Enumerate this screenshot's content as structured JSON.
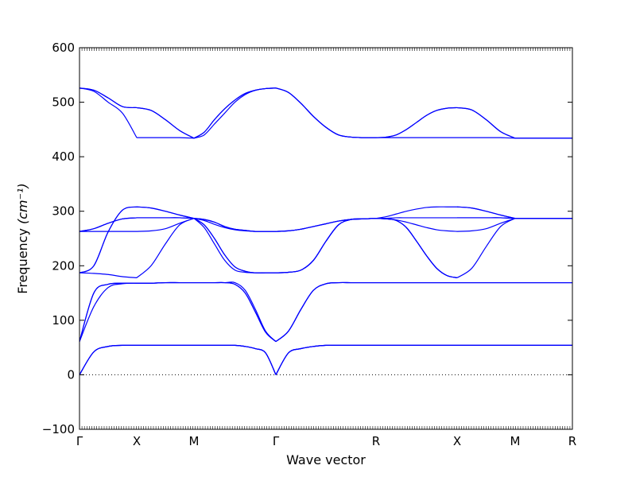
{
  "chart_data": {
    "type": "line",
    "title": "",
    "xlabel": "Wave vector",
    "ylabel": "Frequency",
    "ylabel_unit": "(cm⁻¹)",
    "ylim": [
      -100,
      600
    ],
    "yticks": [
      -100,
      0,
      100,
      200,
      300,
      400,
      500,
      600
    ],
    "k_points": [
      "Γ",
      "X",
      "M",
      "Γ",
      "R",
      "X",
      "M",
      "R"
    ],
    "grid": false,
    "legend": "none",
    "series_color": "#0000ff",
    "zero_line_color": "#000000",
    "segments": [
      {
        "from": "Γ",
        "to": "X",
        "x": [
          0,
          0.25,
          0.5,
          0.75,
          1
        ],
        "bands": [
          [
            0,
            42,
            52,
            54,
            54
          ],
          [
            0,
            42,
            52,
            54,
            54
          ],
          [
            0,
            42,
            52,
            54,
            54
          ],
          [
            61,
            125,
            160,
            167,
            168
          ],
          [
            61,
            150,
            166,
            168,
            168
          ],
          [
            61,
            150,
            166,
            168,
            168
          ],
          [
            187,
            186,
            184,
            180,
            178
          ],
          [
            187,
            200,
            262,
            302,
            308
          ],
          [
            187,
            200,
            262,
            302,
            308
          ],
          [
            263,
            263,
            263,
            263,
            263
          ],
          [
            263,
            268,
            278,
            286,
            288
          ],
          [
            263,
            268,
            278,
            286,
            288
          ],
          [
            526,
            520,
            500,
            480,
            435
          ],
          [
            526,
            522,
            508,
            492,
            490
          ],
          [
            526,
            522,
            508,
            492,
            490
          ]
        ]
      },
      {
        "from": "X",
        "to": "M",
        "x": [
          0,
          0.25,
          0.5,
          0.75,
          1
        ],
        "bands": [
          [
            54,
            54,
            54,
            54,
            54
          ],
          [
            54,
            54,
            54,
            54,
            54
          ],
          [
            54,
            54,
            54,
            54,
            54
          ],
          [
            168,
            168,
            169,
            169,
            169
          ],
          [
            168,
            168,
            169,
            169,
            169
          ],
          [
            168,
            168,
            169,
            169,
            169
          ],
          [
            178,
            200,
            240,
            275,
            287
          ],
          [
            308,
            306,
            300,
            293,
            287
          ],
          [
            308,
            306,
            300,
            293,
            287
          ],
          [
            263,
            264,
            268,
            278,
            287
          ],
          [
            288,
            288,
            288,
            288,
            287
          ],
          [
            288,
            288,
            288,
            288,
            287
          ],
          [
            435,
            435,
            435,
            435,
            434
          ],
          [
            490,
            485,
            468,
            448,
            434
          ],
          [
            490,
            485,
            468,
            448,
            434
          ]
        ]
      },
      {
        "from": "M",
        "to": "Γ",
        "x": [
          0,
          0.125,
          0.25,
          0.375,
          0.5,
          0.625,
          0.75,
          0.875,
          1
        ],
        "bands": [
          [
            54,
            54,
            54,
            54,
            54,
            52,
            48,
            40,
            0
          ],
          [
            54,
            54,
            54,
            54,
            54,
            52,
            48,
            40,
            0
          ],
          [
            54,
            54,
            54,
            54,
            54,
            52,
            48,
            40,
            0
          ],
          [
            169,
            169,
            169,
            169,
            169,
            155,
            120,
            80,
            61
          ],
          [
            169,
            169,
            169,
            169,
            166,
            150,
            115,
            78,
            61
          ],
          [
            169,
            169,
            169,
            169,
            166,
            150,
            115,
            78,
            61
          ],
          [
            287,
            270,
            240,
            210,
            192,
            188,
            187,
            187,
            187
          ],
          [
            287,
            275,
            250,
            220,
            198,
            190,
            187,
            187,
            187
          ],
          [
            287,
            275,
            250,
            220,
            198,
            190,
            187,
            187,
            187
          ],
          [
            287,
            283,
            276,
            270,
            266,
            264,
            263,
            263,
            263
          ],
          [
            287,
            285,
            280,
            272,
            267,
            265,
            263,
            263,
            263
          ],
          [
            287,
            285,
            280,
            272,
            267,
            265,
            263,
            263,
            263
          ],
          [
            434,
            440,
            460,
            480,
            500,
            514,
            522,
            525,
            526
          ],
          [
            434,
            445,
            468,
            488,
            504,
            516,
            522,
            525,
            526
          ],
          [
            434,
            445,
            468,
            488,
            504,
            516,
            522,
            525,
            526
          ]
        ]
      },
      {
        "from": "Γ",
        "to": "R",
        "x": [
          0,
          0.125,
          0.25,
          0.375,
          0.5,
          0.625,
          0.75,
          0.875,
          1
        ],
        "bands": [
          [
            0,
            40,
            48,
            52,
            54,
            54,
            54,
            54,
            54
          ],
          [
            0,
            40,
            48,
            52,
            54,
            54,
            54,
            54,
            54
          ],
          [
            0,
            40,
            48,
            52,
            54,
            54,
            54,
            54,
            54
          ],
          [
            61,
            80,
            120,
            155,
            167,
            169,
            169,
            169,
            169
          ],
          [
            61,
            80,
            120,
            155,
            167,
            169,
            169,
            169,
            169
          ],
          [
            61,
            80,
            120,
            155,
            167,
            169,
            169,
            169,
            169
          ],
          [
            187,
            188,
            192,
            210,
            245,
            275,
            285,
            286,
            287
          ],
          [
            187,
            188,
            192,
            210,
            245,
            275,
            285,
            286,
            287
          ],
          [
            187,
            188,
            192,
            210,
            245,
            275,
            285,
            286,
            287
          ],
          [
            263,
            264,
            267,
            272,
            277,
            282,
            285,
            286,
            287
          ],
          [
            263,
            264,
            267,
            272,
            277,
            282,
            285,
            286,
            287
          ],
          [
            263,
            264,
            267,
            272,
            277,
            282,
            285,
            286,
            287
          ],
          [
            526,
            518,
            498,
            474,
            454,
            440,
            436,
            435,
            435
          ],
          [
            526,
            518,
            498,
            474,
            454,
            440,
            436,
            435,
            435
          ],
          [
            526,
            518,
            498,
            474,
            454,
            440,
            436,
            435,
            435
          ]
        ]
      },
      {
        "from": "R",
        "to": "X",
        "x": [
          0,
          0.125,
          0.25,
          0.375,
          0.5,
          0.625,
          0.75,
          0.875,
          1
        ],
        "bands": [
          [
            54,
            54,
            54,
            54,
            54,
            54,
            54,
            54,
            54
          ],
          [
            54,
            54,
            54,
            54,
            54,
            54,
            54,
            54,
            54
          ],
          [
            54,
            54,
            54,
            54,
            54,
            54,
            54,
            54,
            54
          ],
          [
            169,
            169,
            169,
            169,
            169,
            169,
            169,
            169,
            169
          ],
          [
            169,
            169,
            169,
            169,
            169,
            169,
            169,
            169,
            169
          ],
          [
            169,
            169,
            169,
            169,
            169,
            169,
            169,
            169,
            169
          ],
          [
            287,
            286,
            283,
            270,
            245,
            218,
            195,
            182,
            178
          ],
          [
            287,
            286,
            283,
            270,
            245,
            218,
            195,
            182,
            178
          ],
          [
            287,
            286,
            283,
            270,
            245,
            218,
            195,
            182,
            178
          ],
          [
            287,
            286,
            284,
            280,
            275,
            270,
            266,
            264,
            263
          ],
          [
            287,
            287,
            288,
            288,
            288,
            288,
            288,
            288,
            288
          ],
          [
            287,
            290,
            295,
            300,
            304,
            307,
            308,
            308,
            308
          ],
          [
            435,
            435,
            435,
            435,
            435,
            435,
            435,
            435,
            435
          ],
          [
            435,
            436,
            440,
            450,
            463,
            476,
            485,
            489,
            490
          ],
          [
            435,
            436,
            440,
            450,
            463,
            476,
            485,
            489,
            490
          ]
        ]
      },
      {
        "from": "X",
        "to": "M",
        "x": [
          0,
          0.25,
          0.5,
          0.75,
          1
        ],
        "bands": [
          [
            54,
            54,
            54,
            54,
            54
          ],
          [
            54,
            54,
            54,
            54,
            54
          ],
          [
            54,
            54,
            54,
            54,
            54
          ],
          [
            169,
            169,
            169,
            169,
            169
          ],
          [
            169,
            169,
            169,
            169,
            169
          ],
          [
            169,
            169,
            169,
            169,
            169
          ],
          [
            178,
            195,
            235,
            272,
            287
          ],
          [
            263,
            264,
            268,
            278,
            287
          ],
          [
            288,
            288,
            288,
            288,
            287
          ],
          [
            308,
            306,
            300,
            293,
            287
          ],
          [
            308,
            306,
            300,
            293,
            287
          ],
          [
            288,
            288,
            288,
            288,
            287
          ],
          [
            435,
            435,
            435,
            435,
            434
          ],
          [
            490,
            486,
            468,
            446,
            434
          ],
          [
            490,
            486,
            468,
            446,
            434
          ]
        ]
      },
      {
        "from": "M",
        "to": "R",
        "x": [
          0,
          0.5,
          1
        ],
        "bands": [
          [
            54,
            54,
            54
          ],
          [
            54,
            54,
            54
          ],
          [
            54,
            54,
            54
          ],
          [
            169,
            169,
            169
          ],
          [
            169,
            169,
            169
          ],
          [
            169,
            169,
            169
          ],
          [
            287,
            287,
            287
          ],
          [
            287,
            287,
            287
          ],
          [
            287,
            287,
            287
          ],
          [
            287,
            287,
            287
          ],
          [
            287,
            287,
            287
          ],
          [
            287,
            287,
            287
          ],
          [
            434,
            434,
            434
          ],
          [
            434,
            434,
            434
          ],
          [
            434,
            434,
            434
          ]
        ]
      }
    ]
  }
}
